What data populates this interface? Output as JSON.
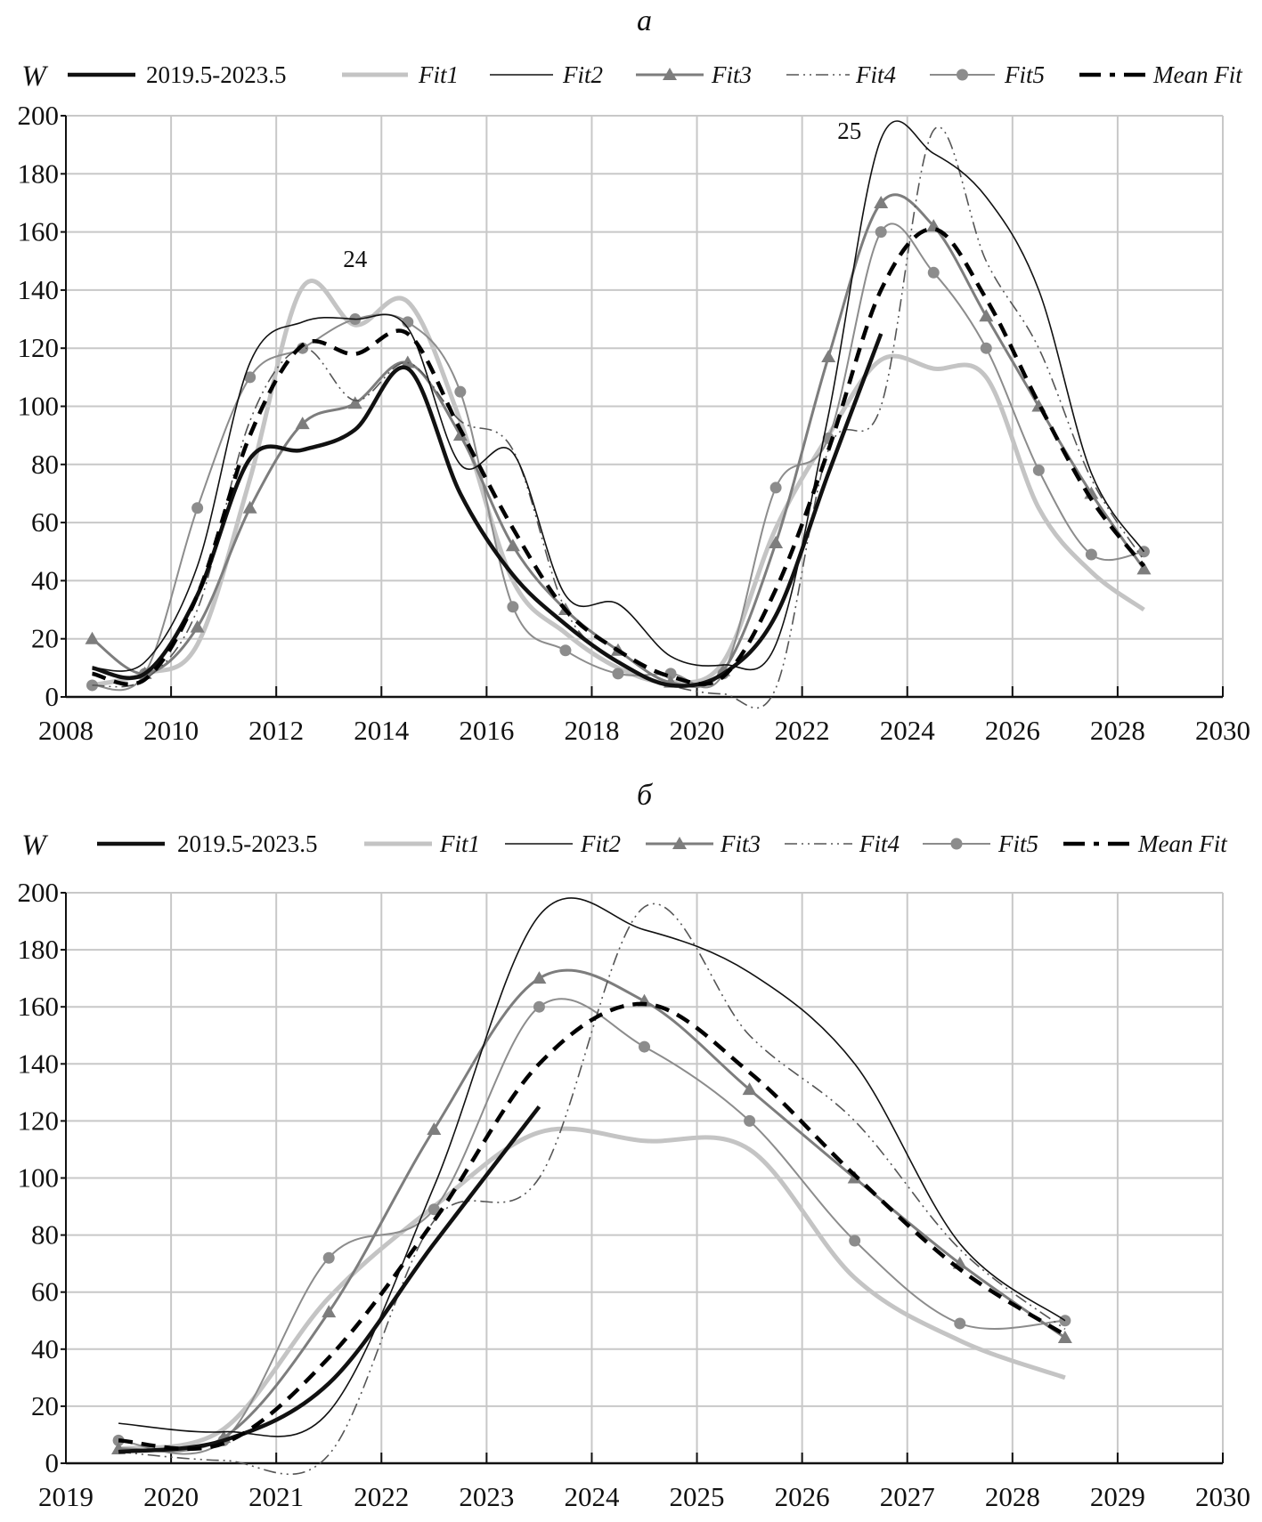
{
  "chart_data": [
    {
      "type": "line",
      "title": "а",
      "ylabel": "W",
      "xlabel": "",
      "xlim": [
        2008,
        2030
      ],
      "ylim": [
        0,
        200
      ],
      "xticks": [
        "2008",
        "2010",
        "2012",
        "2014",
        "2016",
        "2018",
        "2020",
        "2022",
        "2024",
        "2026",
        "2028",
        "2030"
      ],
      "yticks": [
        "0",
        "20",
        "40",
        "60",
        "80",
        "100",
        "120",
        "140",
        "160",
        "180",
        "200"
      ],
      "grid": true,
      "legend": "top",
      "annotations": [
        {
          "text": "24",
          "x": 2013.5,
          "y": 148
        },
        {
          "text": "25",
          "x": 2022.9,
          "y": 192
        }
      ],
      "x": [
        2008.5,
        2009.5,
        2010.5,
        2011.5,
        2012.5,
        2013.5,
        2014.5,
        2015.5,
        2016.5,
        2017.5,
        2018.5,
        2019.5,
        2020.5,
        2021.5,
        2022.5,
        2023.5,
        2024.5,
        2025.5,
        2026.5,
        2027.5,
        2028.5
      ],
      "series": [
        {
          "name": "2019.5-2023.5",
          "style": "observed",
          "values": [
            10,
            8,
            35,
            82,
            85,
            92,
            113,
            70,
            42,
            25,
            12,
            4,
            8,
            28,
            77,
            125,
            null,
            null,
            null,
            null,
            null
          ]
        },
        {
          "name": "Fit1",
          "style": "fit1",
          "values": [
            4,
            8,
            18,
            75,
            141,
            128,
            136,
            95,
            40,
            22,
            10,
            5,
            12,
            58,
            90,
            116,
            113,
            110,
            65,
            43,
            30
          ]
        },
        {
          "name": "Fit2",
          "style": "fit2",
          "values": [
            10,
            12,
            45,
            115,
            129,
            130,
            127,
            80,
            84,
            35,
            32,
            14,
            11,
            18,
            97,
            192,
            187,
            172,
            140,
            77,
            50
          ]
        },
        {
          "name": "Fit3",
          "style": "fit3",
          "values": [
            20,
            8,
            24,
            65,
            94,
            101,
            115,
            90,
            52,
            30,
            16,
            5,
            9,
            53,
            117,
            170,
            162,
            131,
            100,
            70,
            44
          ]
        },
        {
          "name": "Fit4",
          "style": "fit4",
          "values": [
            4,
            6,
            30,
            95,
            120,
            102,
            115,
            95,
            85,
            30,
            12,
            4,
            1,
            3,
            85,
            100,
            195,
            150,
            120,
            75,
            47
          ]
        },
        {
          "name": "Fit5",
          "style": "fit5",
          "values": [
            4,
            8,
            65,
            110,
            120,
            130,
            129,
            105,
            31,
            16,
            8,
            8,
            8,
            72,
            89,
            160,
            146,
            120,
            78,
            49,
            50
          ]
        },
        {
          "name": "Mean Fit",
          "style": "mean",
          "values": [
            8,
            6,
            35,
            90,
            121,
            118,
            125,
            92,
            58,
            30,
            16,
            7,
            7,
            37,
            85,
            140,
            161,
            137,
            101,
            68,
            45
          ]
        }
      ]
    },
    {
      "type": "line",
      "title": "б",
      "ylabel": "W",
      "xlabel": "",
      "xlim": [
        2019,
        2030
      ],
      "ylim": [
        0,
        200
      ],
      "xticks": [
        "2019",
        "2020",
        "2021",
        "2022",
        "2023",
        "2024",
        "2025",
        "2026",
        "2027",
        "2028",
        "2029",
        "2030"
      ],
      "yticks": [
        "0",
        "20",
        "40",
        "60",
        "80",
        "100",
        "120",
        "140",
        "160",
        "180",
        "200"
      ],
      "grid": true,
      "legend": "top",
      "annotations": [],
      "x": [
        2019.5,
        2020.5,
        2021.5,
        2022.5,
        2023.5,
        2024.5,
        2025.5,
        2026.5,
        2027.5,
        2028.5
      ],
      "series": [
        {
          "name": "2019.5-2023.5",
          "style": "observed",
          "values": [
            4,
            8,
            28,
            77,
            125,
            null,
            null,
            null,
            null,
            null
          ]
        },
        {
          "name": "Fit1",
          "style": "fit1",
          "values": [
            5,
            12,
            58,
            90,
            116,
            113,
            110,
            65,
            43,
            30
          ]
        },
        {
          "name": "Fit2",
          "style": "fit2",
          "values": [
            14,
            11,
            18,
            97,
            192,
            187,
            172,
            140,
            77,
            50
          ]
        },
        {
          "name": "Fit3",
          "style": "fit3",
          "values": [
            5,
            9,
            53,
            117,
            170,
            162,
            131,
            100,
            70,
            44
          ]
        },
        {
          "name": "Fit4",
          "style": "fit4",
          "values": [
            4,
            1,
            3,
            85,
            100,
            195,
            150,
            120,
            75,
            47
          ]
        },
        {
          "name": "Fit5",
          "style": "fit5",
          "values": [
            8,
            8,
            72,
            89,
            160,
            146,
            120,
            78,
            49,
            50
          ]
        },
        {
          "name": "Mean Fit",
          "style": "mean",
          "values": [
            8,
            7,
            37,
            85,
            140,
            161,
            137,
            101,
            68,
            45
          ]
        }
      ]
    }
  ],
  "styles": {
    "observed": {
      "color": "#111111",
      "width": 4.5,
      "dash": "",
      "marker": ""
    },
    "fit1": {
      "color": "#c4c4c4",
      "width": 5,
      "dash": "",
      "marker": ""
    },
    "fit2": {
      "color": "#111111",
      "width": 1.6,
      "dash": "",
      "marker": ""
    },
    "fit3": {
      "color": "#7d7d7d",
      "width": 3,
      "dash": "",
      "marker": "triangle"
    },
    "fit4": {
      "color": "#555555",
      "width": 1.6,
      "dash": "14 5 2 5 2 5",
      "marker": ""
    },
    "fit5": {
      "color": "#8c8c8c",
      "width": 2,
      "dash": "",
      "marker": "circle"
    },
    "mean": {
      "color": "#000000",
      "width": 4.5,
      "dash": "16 10",
      "marker": ""
    }
  },
  "grid_color": "#c8c8c8"
}
